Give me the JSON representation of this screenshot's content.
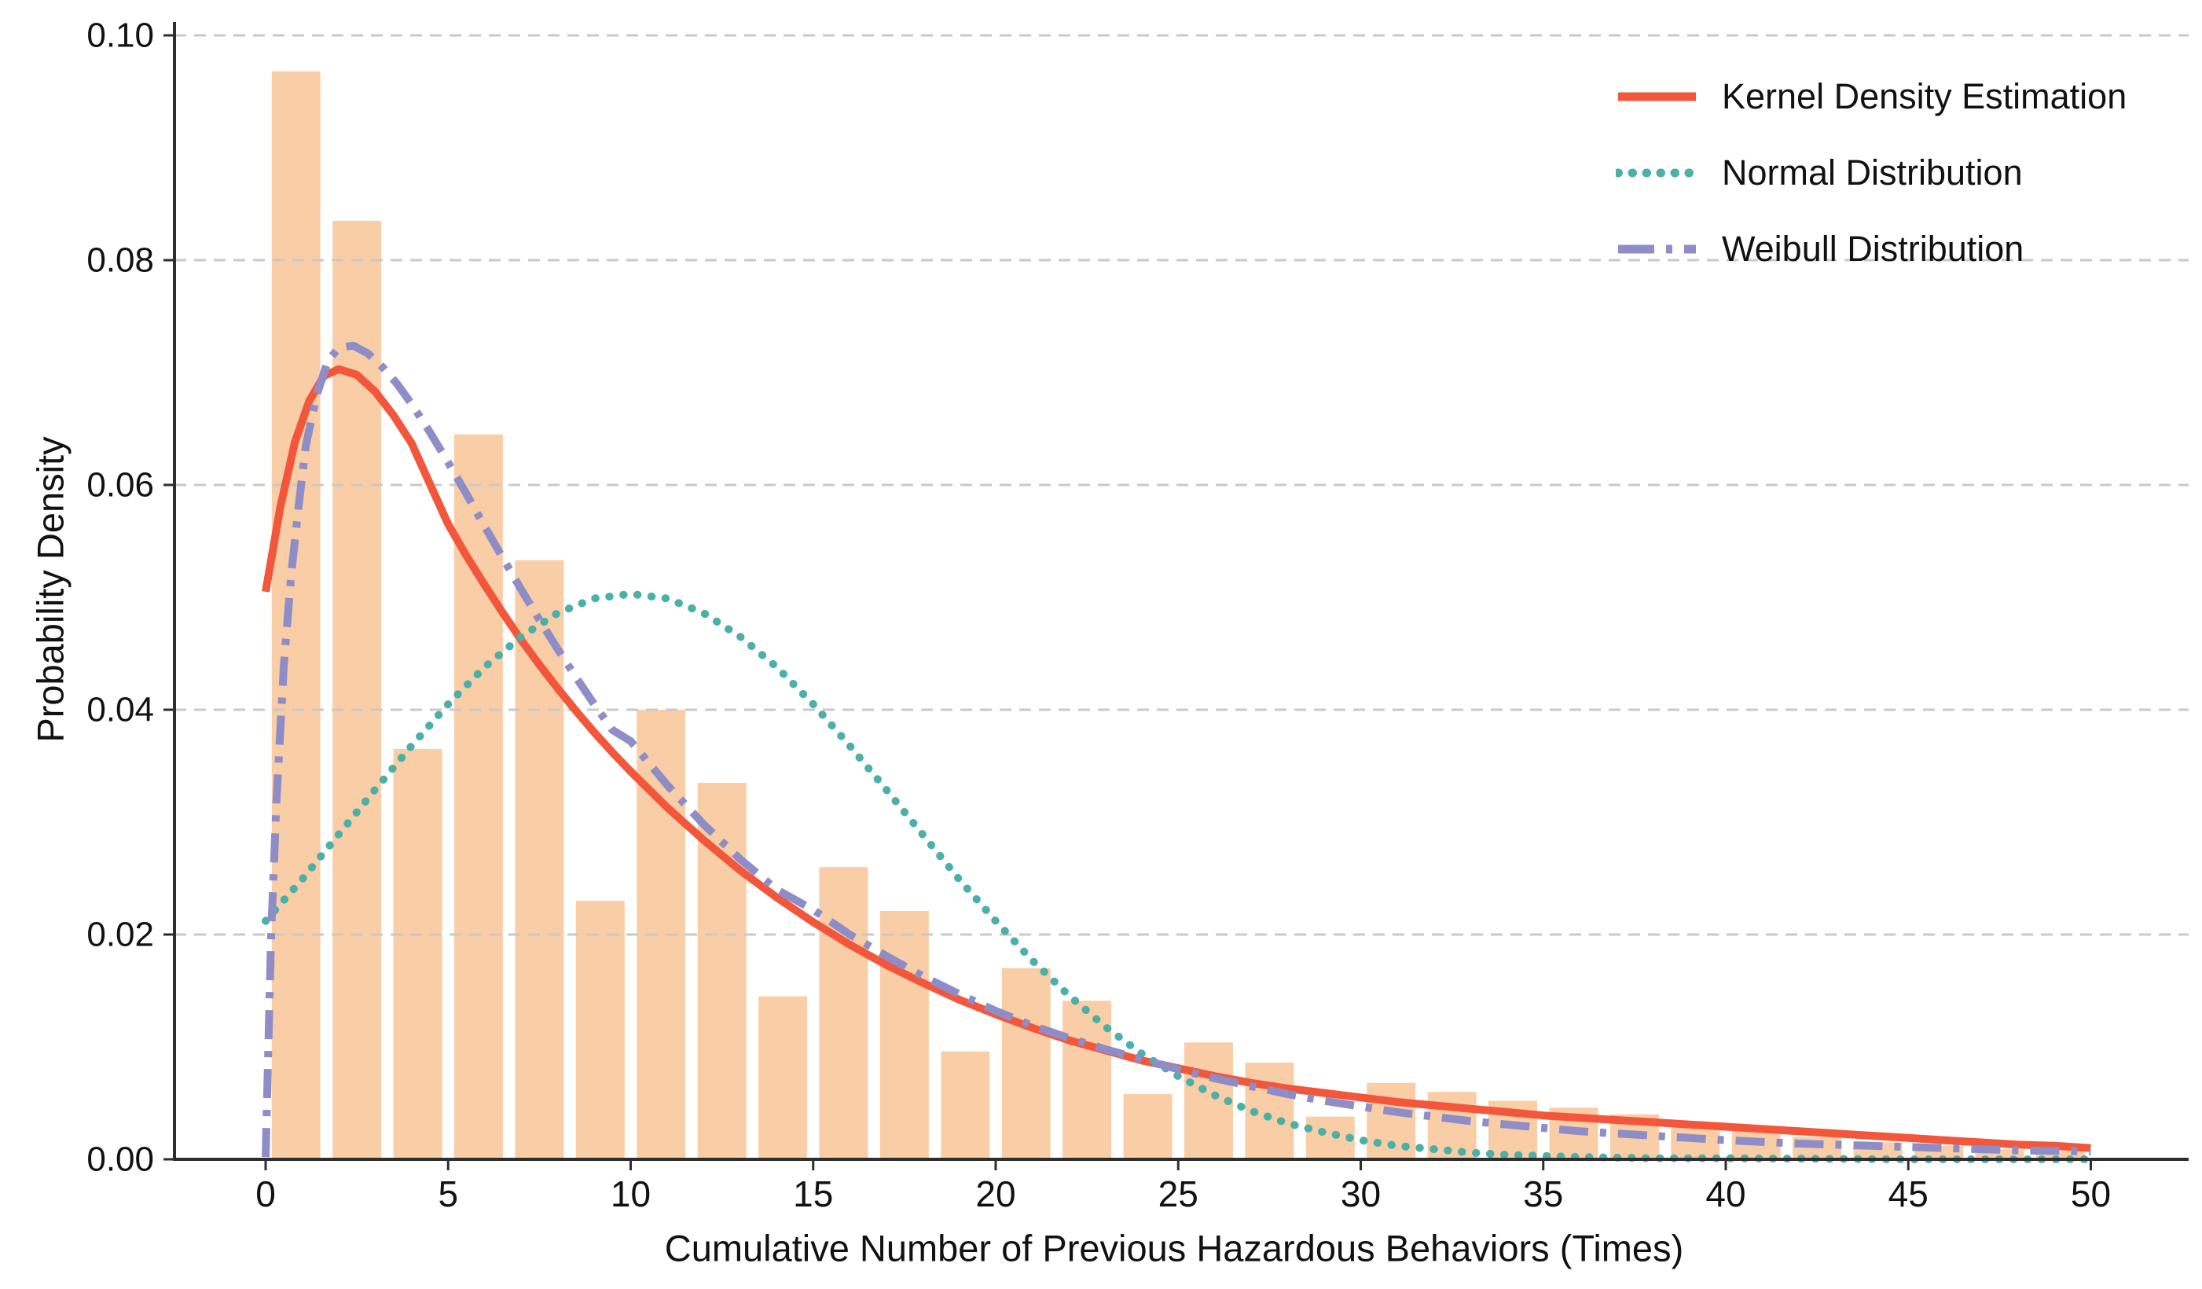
{
  "figure": {
    "xlabel": "Cumulative Number of Previous Hazardous Behaviors (Times)",
    "ylabel": "Probability Density"
  },
  "legend": {
    "position": "upper-right",
    "items": [
      {
        "label": "Kernel Density Estimation",
        "style": "solid",
        "color": "#f2573c"
      },
      {
        "label": "Normal Distribution",
        "style": "dotted",
        "color": "#4bb0a7"
      },
      {
        "label": "Weibull Distribution",
        "style": "dashdot",
        "color": "#8e8dc8"
      }
    ]
  },
  "colors": {
    "bar": "#f9cda6",
    "kde": "#f2573c",
    "normal": "#4bb0a7",
    "weibull": "#8e8dc8",
    "grid": "#c9c9c9",
    "spine": "#2e2e2e",
    "text": "#111111"
  },
  "chart_data": {
    "type": "bar",
    "subtype": "histogram_with_density_curves",
    "title": "",
    "xlabel": "Cumulative Number of Previous Hazardous Behaviors (Times)",
    "ylabel": "Probability Density",
    "xlim": [
      -2.5,
      52.6
    ],
    "ylim": [
      0,
      0.1017
    ],
    "grid": "horizontal dashed",
    "legend_position": "upper right",
    "x_ticks": [
      {
        "label": "0",
        "value": 0
      },
      {
        "label": "5",
        "value": 5
      },
      {
        "label": "10",
        "value": 10
      },
      {
        "label": "15",
        "value": 15
      },
      {
        "label": "20",
        "value": 20
      },
      {
        "label": "25",
        "value": 25
      },
      {
        "label": "30",
        "value": 30
      },
      {
        "label": "35",
        "value": 35
      },
      {
        "label": "40",
        "value": 40
      },
      {
        "label": "45",
        "value": 45
      },
      {
        "label": "50",
        "value": 50
      }
    ],
    "y_ticks": [
      {
        "label": "0.00",
        "value": 0.0
      },
      {
        "label": "0.02",
        "value": 0.02
      },
      {
        "label": "0.04",
        "value": 0.04
      },
      {
        "label": "0.06",
        "value": 0.06
      },
      {
        "label": "0.08",
        "value": 0.08
      },
      {
        "label": "0.10",
        "value": 0.1
      }
    ],
    "histogram": {
      "name": "cumulative-hazardous-behaviors-histogram",
      "bin_start": 0,
      "bin_width": 1.6667,
      "bar_fill_fraction": 0.8,
      "color": "#f9cda6",
      "densities": [
        0.0968,
        0.0835,
        0.0365,
        0.0645,
        0.0533,
        0.023,
        0.04,
        0.0335,
        0.0145,
        0.026,
        0.0221,
        0.0096,
        0.017,
        0.0141,
        0.0058,
        0.0104,
        0.0086,
        0.0038,
        0.0068,
        0.006,
        0.0052,
        0.0046,
        0.004,
        0.0031,
        0.0029,
        0.002,
        0.0015,
        0.0012,
        0.0009,
        0.0008
      ]
    },
    "series": [
      {
        "name": "Kernel Density Estimation",
        "style": "solid",
        "color": "#f2573c",
        "width": 10,
        "points": [
          [
            0,
            0.0505
          ],
          [
            0.4,
            0.058
          ],
          [
            0.8,
            0.0638
          ],
          [
            1.2,
            0.0675
          ],
          [
            1.6,
            0.0697
          ],
          [
            2,
            0.0703
          ],
          [
            2.5,
            0.0698
          ],
          [
            3,
            0.0683
          ],
          [
            3.5,
            0.0662
          ],
          [
            4,
            0.0637
          ],
          [
            4.5,
            0.0601
          ],
          [
            5,
            0.0565
          ],
          [
            5.5,
            0.0537
          ],
          [
            6,
            0.0511
          ],
          [
            6.5,
            0.0486
          ],
          [
            7,
            0.0462
          ],
          [
            7.5,
            0.044
          ],
          [
            8,
            0.0419
          ],
          [
            8.5,
            0.0399
          ],
          [
            9,
            0.038
          ],
          [
            9.5,
            0.0362
          ],
          [
            10,
            0.0345
          ],
          [
            11,
            0.0313
          ],
          [
            12,
            0.0284
          ],
          [
            13,
            0.0257
          ],
          [
            14,
            0.0233
          ],
          [
            15,
            0.0211
          ],
          [
            16,
            0.0191
          ],
          [
            17,
            0.0173
          ],
          [
            18,
            0.0157
          ],
          [
            19,
            0.0142
          ],
          [
            20,
            0.0129
          ],
          [
            21,
            0.0117
          ],
          [
            22,
            0.0106
          ],
          [
            23,
            0.0097
          ],
          [
            24,
            0.0088
          ],
          [
            25,
            0.0081
          ],
          [
            26,
            0.0074
          ],
          [
            27,
            0.0068
          ],
          [
            28,
            0.0063
          ],
          [
            29,
            0.0059
          ],
          [
            30,
            0.0055
          ],
          [
            31,
            0.0051
          ],
          [
            32,
            0.0048
          ],
          [
            33,
            0.0045
          ],
          [
            34,
            0.0042
          ],
          [
            35,
            0.0039
          ],
          [
            36,
            0.0037
          ],
          [
            37,
            0.0035
          ],
          [
            38,
            0.0033
          ],
          [
            39,
            0.0031
          ],
          [
            40,
            0.0029
          ],
          [
            41,
            0.0027
          ],
          [
            42,
            0.0025
          ],
          [
            43,
            0.0023
          ],
          [
            44,
            0.0021
          ],
          [
            45,
            0.0019
          ],
          [
            46,
            0.0017
          ],
          [
            47,
            0.0015
          ],
          [
            48,
            0.0013
          ],
          [
            49,
            0.0012
          ],
          [
            50,
            0.001
          ]
        ]
      },
      {
        "name": "Normal Distribution",
        "style": "dotted",
        "color": "#4bb0a7",
        "width": 10,
        "mu": 10,
        "sigma": 7.6,
        "points": [
          [
            0,
            0.0212
          ],
          [
            1,
            0.0249
          ],
          [
            2,
            0.0289
          ],
          [
            3,
            0.0329
          ],
          [
            4,
            0.0368
          ],
          [
            5,
            0.0405
          ],
          [
            6,
            0.0438
          ],
          [
            7,
            0.0465
          ],
          [
            8,
            0.0486
          ],
          [
            9,
            0.0499
          ],
          [
            10,
            0.0503
          ],
          [
            11,
            0.0499
          ],
          [
            12,
            0.0486
          ],
          [
            13,
            0.0465
          ],
          [
            14,
            0.0438
          ],
          [
            15,
            0.0405
          ],
          [
            16,
            0.0368
          ],
          [
            17,
            0.0329
          ],
          [
            18,
            0.0289
          ],
          [
            19,
            0.0249
          ],
          [
            20,
            0.0212
          ],
          [
            21,
            0.0177
          ],
          [
            22,
            0.0146
          ],
          [
            23,
            0.0118
          ],
          [
            24,
            0.0094
          ],
          [
            25,
            0.0074
          ],
          [
            26,
            0.0057
          ],
          [
            27,
            0.0043
          ],
          [
            28,
            0.0032
          ],
          [
            29,
            0.0024
          ],
          [
            30,
            0.0017
          ],
          [
            31,
            0.0012
          ],
          [
            32,
            0.0009
          ],
          [
            33,
            0.0006
          ],
          [
            34,
            0.0004
          ],
          [
            35,
            0.0003
          ],
          [
            36,
            0.0002
          ],
          [
            38,
            0.0001
          ],
          [
            40,
            0.0001
          ],
          [
            45,
            0.0
          ],
          [
            50,
            0.0
          ]
        ]
      },
      {
        "name": "Weibull Distribution",
        "style": "dashdot",
        "color": "#8e8dc8",
        "width": 10,
        "points": [
          [
            0,
            0.0002
          ],
          [
            0.15,
            0.02
          ],
          [
            0.3,
            0.032
          ],
          [
            0.5,
            0.044
          ],
          [
            0.7,
            0.052
          ],
          [
            0.9,
            0.058
          ],
          [
            1.1,
            0.0635
          ],
          [
            1.4,
            0.068
          ],
          [
            1.7,
            0.071
          ],
          [
            2,
            0.0722
          ],
          [
            2.4,
            0.0724
          ],
          [
            2.8,
            0.0717
          ],
          [
            3.2,
            0.0705
          ],
          [
            3.6,
            0.069
          ],
          [
            4,
            0.0672
          ],
          [
            4.5,
            0.0647
          ],
          [
            5,
            0.062
          ],
          [
            5.5,
            0.0592
          ],
          [
            6,
            0.0563
          ],
          [
            6.5,
            0.0535
          ],
          [
            7,
            0.0507
          ],
          [
            7.5,
            0.048
          ],
          [
            8,
            0.0454
          ],
          [
            8.5,
            0.0429
          ],
          [
            9,
            0.0405
          ],
          [
            9.5,
            0.0382
          ],
          [
            10,
            0.0372
          ],
          [
            11,
            0.0333
          ],
          [
            12,
            0.0298
          ],
          [
            13,
            0.0267
          ],
          [
            14,
            0.024
          ],
          [
            15,
            0.0222
          ],
          [
            16,
            0.02
          ],
          [
            17,
            0.0181
          ],
          [
            18,
            0.0163
          ],
          [
            19,
            0.0147
          ],
          [
            20,
            0.0132
          ],
          [
            21,
            0.0119
          ],
          [
            22,
            0.0108
          ],
          [
            23,
            0.0098
          ],
          [
            24,
            0.0089
          ],
          [
            25,
            0.008
          ],
          [
            26,
            0.0072
          ],
          [
            27,
            0.0065
          ],
          [
            28,
            0.0058
          ],
          [
            29,
            0.0052
          ],
          [
            30,
            0.0047
          ],
          [
            31,
            0.0042
          ],
          [
            32,
            0.0038
          ],
          [
            33,
            0.0034
          ],
          [
            34,
            0.0031
          ],
          [
            35,
            0.0028
          ],
          [
            36,
            0.0025
          ],
          [
            37,
            0.0023
          ],
          [
            38,
            0.0021
          ],
          [
            39,
            0.0019
          ],
          [
            40,
            0.0017
          ],
          [
            42,
            0.0014
          ],
          [
            44,
            0.0012
          ],
          [
            46,
            0.001
          ],
          [
            48,
            0.0008
          ],
          [
            50,
            0.0007
          ]
        ]
      }
    ]
  }
}
